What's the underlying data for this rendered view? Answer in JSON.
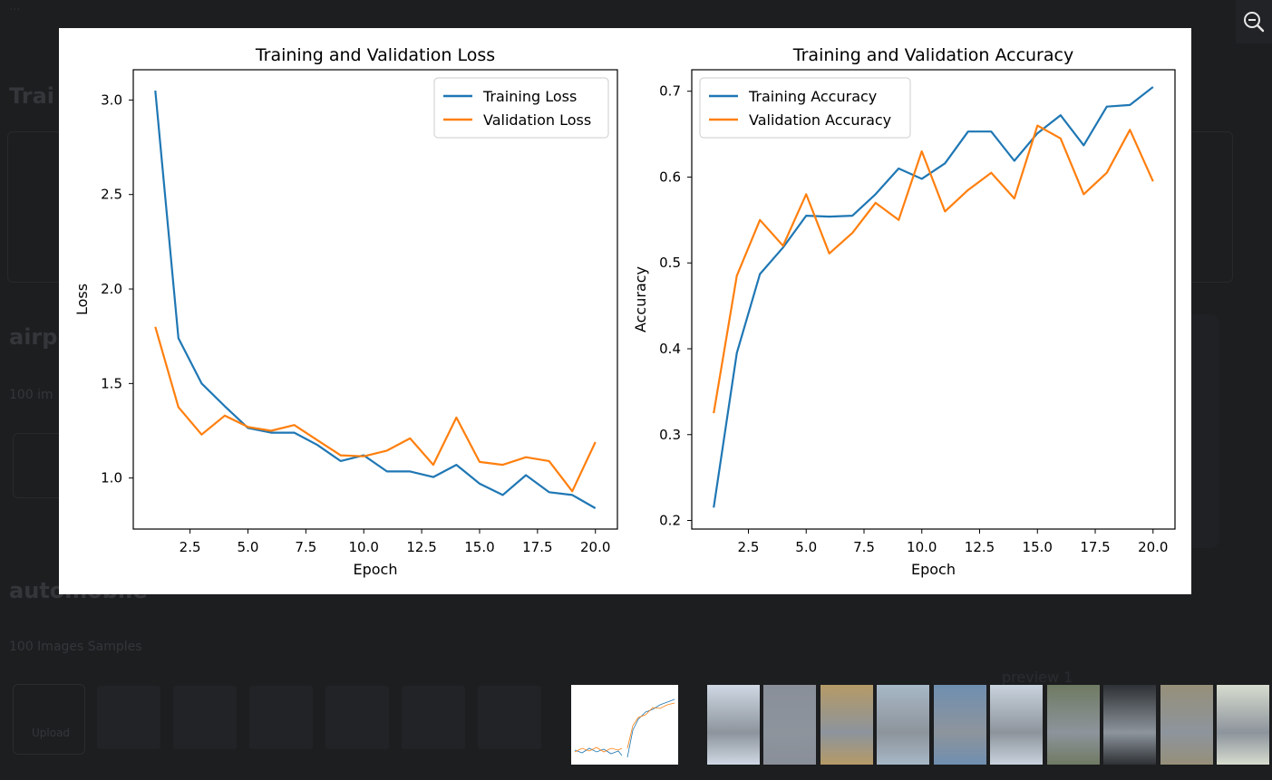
{
  "background": {
    "top_line": "...",
    "section_heading_1": "Trai",
    "section_heading_2": "airp",
    "section_heading_3": "automobile",
    "subtitle_1": "100 im",
    "subtitle_2": "100 Images Samples",
    "faint_label": "Upload",
    "faint_caption": "preview 1"
  },
  "chart_data": [
    {
      "type": "line",
      "title": "Training and Validation Loss",
      "xlabel": "Epoch",
      "ylabel": "Loss",
      "xlim": [
        0.05,
        20.95
      ],
      "ylim": [
        0.73,
        3.16
      ],
      "xticks": [
        "2.5",
        "5.0",
        "7.5",
        "10.0",
        "12.5",
        "15.0",
        "17.5",
        "20.0"
      ],
      "yticks": [
        "1.0",
        "1.5",
        "2.0",
        "2.5",
        "3.0"
      ],
      "legend": "top-right",
      "x": [
        1,
        2,
        3,
        4,
        5,
        6,
        7,
        8,
        9,
        10,
        11,
        12,
        13,
        14,
        15,
        16,
        17,
        18,
        19,
        20
      ],
      "series": [
        {
          "name": "Training Loss",
          "color": "#1f77b4",
          "values": [
            3.05,
            1.74,
            1.5,
            1.38,
            1.265,
            1.24,
            1.24,
            1.175,
            1.09,
            1.12,
            1.035,
            1.035,
            1.005,
            1.07,
            0.97,
            0.91,
            1.015,
            0.925,
            0.91,
            0.84
          ]
        },
        {
          "name": "Validation Loss",
          "color": "#ff7f0e",
          "values": [
            1.8,
            1.375,
            1.23,
            1.33,
            1.27,
            1.25,
            1.28,
            1.2,
            1.12,
            1.115,
            1.145,
            1.21,
            1.07,
            1.32,
            1.085,
            1.07,
            1.11,
            1.09,
            0.93,
            1.19
          ]
        }
      ]
    },
    {
      "type": "line",
      "title": "Training and Validation Accuracy",
      "xlabel": "Epoch",
      "ylabel": "Accuracy",
      "xlim": [
        0.05,
        20.95
      ],
      "ylim": [
        0.19,
        0.725
      ],
      "xticks": [
        "2.5",
        "5.0",
        "7.5",
        "10.0",
        "12.5",
        "15.0",
        "17.5",
        "20.0"
      ],
      "yticks": [
        "0.2",
        "0.3",
        "0.4",
        "0.5",
        "0.6",
        "0.7"
      ],
      "legend": "top-left",
      "x": [
        1,
        2,
        3,
        4,
        5,
        6,
        7,
        8,
        9,
        10,
        11,
        12,
        13,
        14,
        15,
        16,
        17,
        18,
        19,
        20
      ],
      "series": [
        {
          "name": "Training Accuracy",
          "color": "#1f77b4",
          "values": [
            0.215,
            0.395,
            0.487,
            0.518,
            0.555,
            0.554,
            0.555,
            0.58,
            0.61,
            0.598,
            0.616,
            0.653,
            0.653,
            0.619,
            0.651,
            0.672,
            0.637,
            0.682,
            0.684,
            0.705
          ]
        },
        {
          "name": "Validation Accuracy",
          "color": "#ff7f0e",
          "values": [
            0.325,
            0.485,
            0.55,
            0.52,
            0.58,
            0.511,
            0.535,
            0.57,
            0.55,
            0.63,
            0.56,
            0.585,
            0.605,
            0.575,
            0.66,
            0.645,
            0.58,
            0.605,
            0.655,
            0.595
          ]
        }
      ]
    }
  ],
  "thumbnails": {
    "photo_colors": [
      "#cfd8e4",
      "#8a8f99",
      "#b59a66",
      "#a7b8c6",
      "#6f8fb0",
      "#c9d3dd",
      "#6f7a62",
      "#2e3135",
      "#96907a",
      "#d7dccf"
    ]
  },
  "icons": {
    "zoom_out": "zoom-out-icon"
  }
}
